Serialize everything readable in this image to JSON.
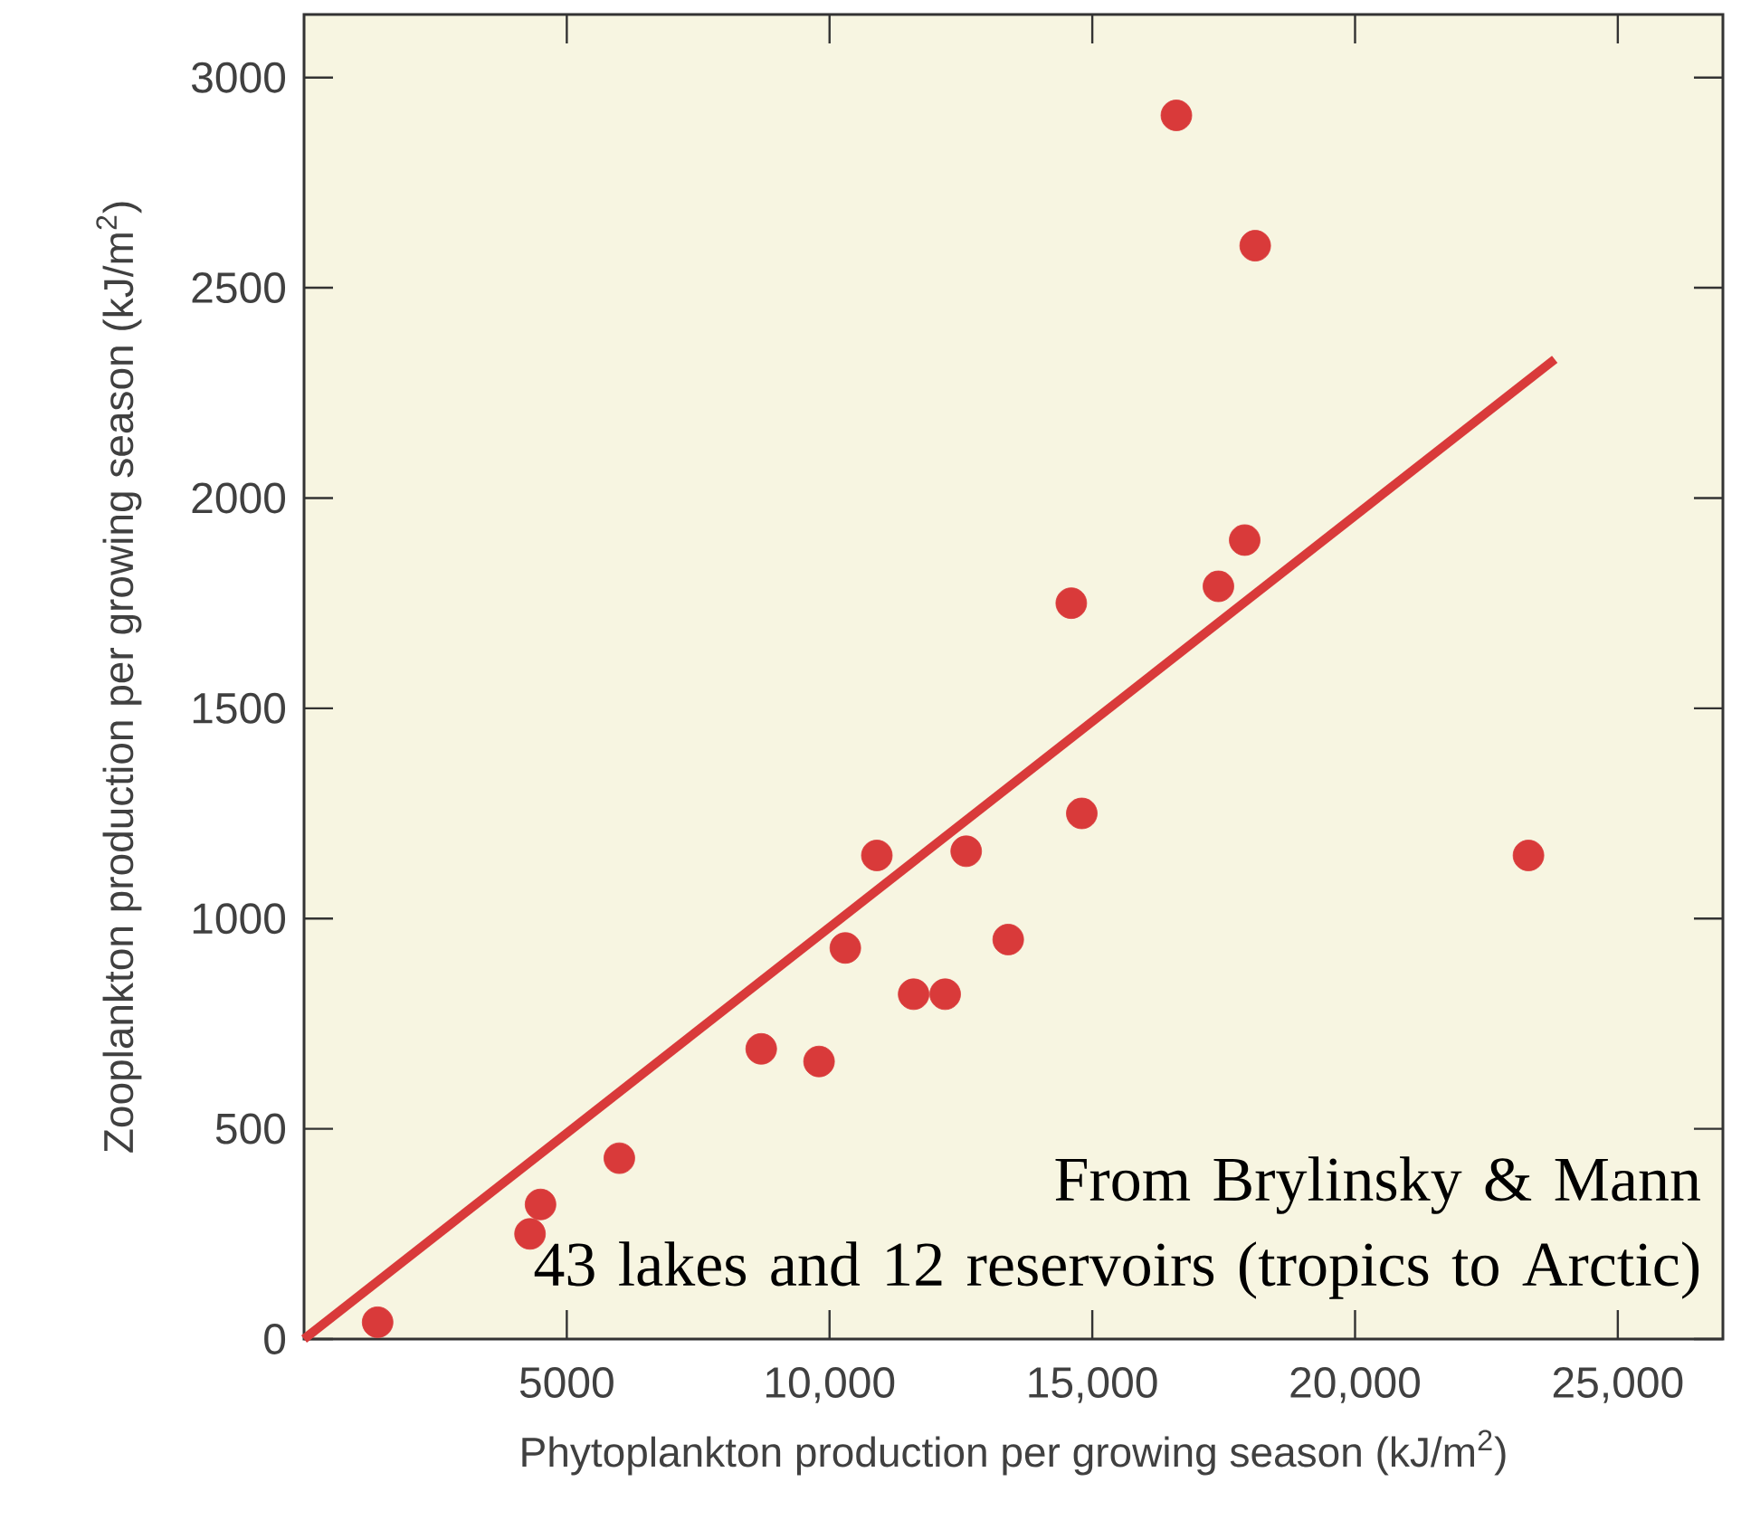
{
  "chart_data": {
    "type": "scatter",
    "xlabel": "Phytoplankton production per growing season (kJ/m$^{2}$)",
    "ylabel": "Zooplankton production per growing season (kJ/m$^{2}$)",
    "xlim": [
      0,
      27000
    ],
    "ylim": [
      0,
      3150
    ],
    "xticks": [
      5000,
      {
        "value": 10000,
        "label": "10,000"
      },
      {
        "value": 15000,
        "label": "15,000"
      },
      {
        "value": 20000,
        "label": "20,000"
      },
      {
        "value": 25000,
        "label": "25,000"
      }
    ],
    "yticks": [
      0,
      500,
      1000,
      1500,
      2000,
      2500,
      3000
    ],
    "annotations": [
      "From Brylinsky & Mann",
      "43 lakes and 12 reservoirs (tropics to Arctic)"
    ],
    "series": [
      {
        "color": "#d93a3a",
        "marker": "circle",
        "x": [
          16600,
          18100,
          17900,
          17400,
          14600,
          14800,
          23300,
          10900,
          12600,
          10300,
          13400,
          11600,
          12200,
          8700,
          9800,
          6000,
          4500,
          4300,
          1400
        ],
        "values": [
          2910,
          2600,
          1900,
          1790,
          1750,
          1250,
          1150,
          1150,
          1160,
          930,
          950,
          820,
          820,
          690,
          660,
          430,
          320,
          250,
          40
        ]
      },
      {
        "type": "line",
        "color": "#d93a3a",
        "marker": "none",
        "x": [
          0,
          23800
        ],
        "values": [
          0,
          2330
        ]
      }
    ]
  }
}
